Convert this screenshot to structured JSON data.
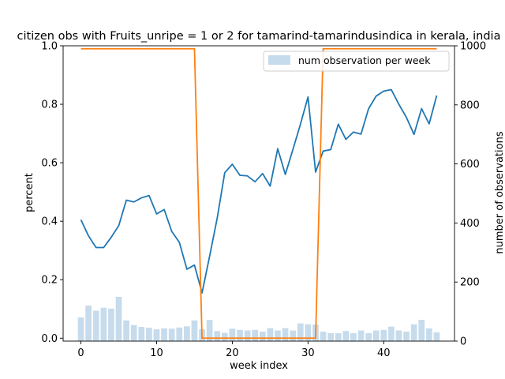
{
  "chart_data": {
    "type": "bar+line",
    "title": "citizen obs with Fruits_unripe = 1 or 2 for tamarind-tamarindusindica in kerala, india",
    "xlabel": "week index",
    "ylabel_left": "percent",
    "ylabel_right": "number of observations",
    "xlim": [
      -2.35,
      49.35
    ],
    "ylim_left": [
      -0.01,
      1.0
    ],
    "ylim_right": [
      0,
      1000
    ],
    "xticks": [
      0,
      10,
      20,
      30,
      40
    ],
    "yticks_left": [
      "0.0",
      "0.2",
      "0.4",
      "0.6",
      "0.8",
      "1.0"
    ],
    "yticks_right": [
      "0",
      "200",
      "400",
      "600",
      "800",
      "1000"
    ],
    "legend": {
      "placement": "top-right",
      "entries": [
        "num observation per week"
      ]
    },
    "x": [
      0,
      1,
      2,
      3,
      4,
      5,
      6,
      7,
      8,
      9,
      10,
      11,
      12,
      13,
      14,
      15,
      16,
      17,
      18,
      19,
      20,
      21,
      22,
      23,
      24,
      25,
      26,
      27,
      28,
      29,
      30,
      31,
      32,
      33,
      34,
      35,
      36,
      37,
      38,
      39,
      40,
      41,
      42,
      43,
      44,
      45,
      46,
      47
    ],
    "series": [
      {
        "name": "num observation per week",
        "kind": "bar",
        "axis": "right",
        "color": "#c6dbec",
        "values": [
          80,
          120,
          103,
          113,
          110,
          150,
          70,
          54,
          48,
          45,
          40,
          43,
          42,
          46,
          50,
          70,
          40,
          72,
          34,
          28,
          42,
          38,
          36,
          38,
          32,
          44,
          36,
          44,
          36,
          60,
          57,
          56,
          32,
          27,
          27,
          34,
          27,
          36,
          27,
          36,
          38,
          49,
          36,
          32,
          57,
          72,
          43,
          30
        ]
      },
      {
        "kind": "line",
        "axis": "left",
        "color": "#1f77b4",
        "values": [
          0.405,
          0.35,
          0.31,
          0.31,
          0.345,
          0.385,
          0.472,
          0.466,
          0.48,
          0.488,
          0.425,
          0.44,
          0.365,
          0.328,
          0.236,
          0.25,
          0.155,
          0.28,
          0.41,
          0.566,
          0.595,
          0.557,
          0.555,
          0.535,
          0.563,
          0.52,
          0.648,
          0.56,
          0.645,
          0.732,
          0.825,
          0.568,
          0.64,
          0.645,
          0.732,
          0.68,
          0.705,
          0.698,
          0.785,
          0.828,
          0.845,
          0.85,
          0.8,
          0.755,
          0.697,
          0.785,
          0.733,
          0.83
        ]
      },
      {
        "kind": "line",
        "axis": "right",
        "color": "#ff7f0e",
        "values": [
          990,
          990,
          990,
          990,
          990,
          990,
          990,
          990,
          990,
          990,
          990,
          990,
          990,
          990,
          990,
          990,
          10,
          10,
          10,
          10,
          10,
          10,
          10,
          10,
          10,
          10,
          10,
          10,
          10,
          10,
          10,
          10,
          990,
          990,
          990,
          990,
          990,
          990,
          990,
          990,
          990,
          990,
          990,
          990,
          990,
          990,
          990,
          990
        ]
      }
    ]
  }
}
